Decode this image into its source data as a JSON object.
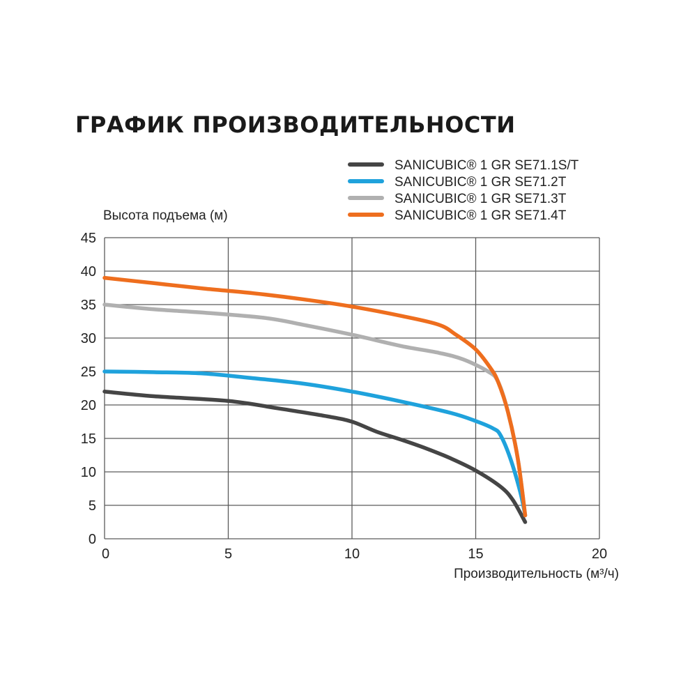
{
  "chart_data": {
    "type": "line",
    "title": "ГРАФИК ПРОИЗВОДИТЕЛЬНОСТИ",
    "xlabel": "Производительность (м³/ч)",
    "ylabel": "Высота подъема (м)",
    "xlim": [
      0,
      20
    ],
    "ylim": [
      0,
      45
    ],
    "xticks": [
      0,
      5,
      10,
      15,
      20
    ],
    "yticks": [
      0,
      5,
      10,
      15,
      20,
      25,
      30,
      35,
      40,
      45
    ],
    "grid": true,
    "legend_position": "top-right",
    "series": [
      {
        "name": "SANICUBIC® 1 GR SE71.1S/T",
        "color": "#454545",
        "points": [
          [
            0,
            22
          ],
          [
            2,
            21.3
          ],
          [
            5,
            20.6
          ],
          [
            7,
            19.5
          ],
          [
            9,
            18.3
          ],
          [
            10,
            17.5
          ],
          [
            11,
            16
          ],
          [
            12,
            14.8
          ],
          [
            13,
            13.5
          ],
          [
            14,
            12
          ],
          [
            15,
            10.2
          ],
          [
            16,
            7.8
          ],
          [
            16.5,
            5.8
          ],
          [
            17,
            2.5
          ]
        ]
      },
      {
        "name": "SANICUBIC® 1 GR SE71.2T",
        "color": "#1fa2dc",
        "points": [
          [
            0,
            25
          ],
          [
            2,
            24.9
          ],
          [
            4,
            24.7
          ],
          [
            6,
            24
          ],
          [
            8,
            23.2
          ],
          [
            10,
            22
          ],
          [
            12,
            20.5
          ],
          [
            14,
            18.8
          ],
          [
            15,
            17.6
          ],
          [
            15.7,
            16.5
          ],
          [
            16,
            15.5
          ],
          [
            16.4,
            12
          ],
          [
            16.8,
            7
          ],
          [
            17,
            3.5
          ]
        ]
      },
      {
        "name": "SANICUBIC® 1 GR SE71.3T",
        "color": "#b0b0b0",
        "points": [
          [
            0,
            35
          ],
          [
            2,
            34.3
          ],
          [
            4,
            33.8
          ],
          [
            6.5,
            33
          ],
          [
            8,
            32
          ],
          [
            10,
            30.5
          ],
          [
            12,
            28.8
          ],
          [
            13.5,
            27.8
          ],
          [
            14.5,
            26.8
          ],
          [
            15.5,
            25
          ],
          [
            15.9,
            23.5
          ],
          [
            16.3,
            19
          ],
          [
            16.7,
            12
          ],
          [
            17,
            3.5
          ]
        ]
      },
      {
        "name": "SANICUBIC® 1 GR SE71.4T",
        "color": "#ee6e1e",
        "points": [
          [
            0,
            39
          ],
          [
            2,
            38.2
          ],
          [
            4,
            37.4
          ],
          [
            6,
            36.7
          ],
          [
            8,
            35.8
          ],
          [
            10,
            34.7
          ],
          [
            12,
            33.3
          ],
          [
            13.5,
            32
          ],
          [
            14.2,
            30.5
          ],
          [
            15,
            28.3
          ],
          [
            15.6,
            25.5
          ],
          [
            15.9,
            23.5
          ],
          [
            16.3,
            19
          ],
          [
            16.7,
            12
          ],
          [
            17,
            3.5
          ]
        ]
      }
    ]
  }
}
